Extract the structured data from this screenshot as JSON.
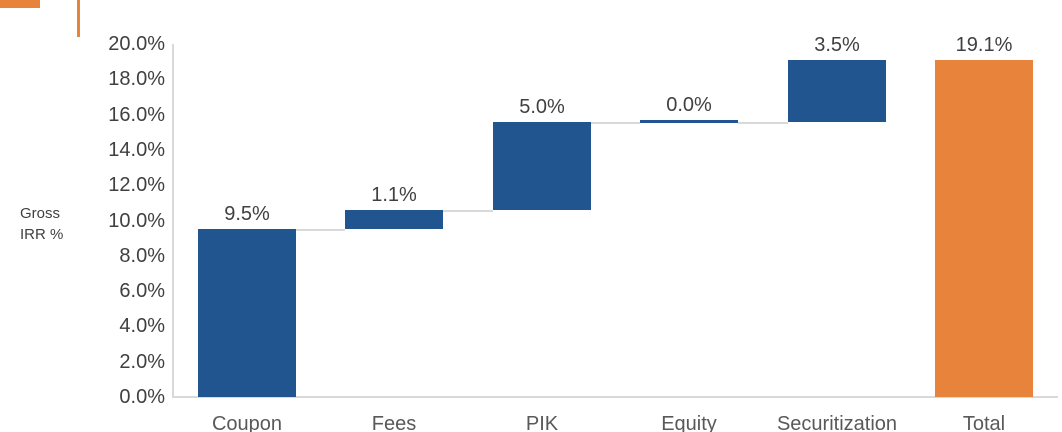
{
  "page": {
    "background": "#ffffff"
  },
  "decoration": {
    "accent_color": "#E8833C"
  },
  "chart_data": {
    "type": "bar",
    "subtype": "waterfall",
    "title": "",
    "xlabel": "",
    "ylabel": "Gross IRR %",
    "ylim": [
      0,
      20
    ],
    "ytick_step": 2,
    "ytick_labels": [
      "20.0%",
      "18.0%",
      "16.0%",
      "14.0%",
      "12.0%",
      "10.0%",
      "8.0%",
      "6.0%",
      "4.0%",
      "2.0%",
      "0.0%"
    ],
    "grid": false,
    "legend": false,
    "categories": [
      "Coupon",
      "Fees",
      "PIK",
      "Equity",
      "Securitization",
      "Total"
    ],
    "bars": [
      {
        "category": "Coupon",
        "start": 0,
        "end": 9.5,
        "label": "9.5%",
        "role": "increment",
        "connector_to_next": true
      },
      {
        "category": "Fees",
        "start": 9.5,
        "end": 10.6,
        "label": "1.1%",
        "role": "increment",
        "connector_to_next": true
      },
      {
        "category": "PIK",
        "start": 10.6,
        "end": 15.6,
        "label": "5.0%",
        "role": "increment",
        "connector_to_next": true
      },
      {
        "category": "Equity",
        "start": 15.6,
        "end": 15.6,
        "label": "0.0%",
        "role": "increment",
        "connector_to_next": true
      },
      {
        "category": "Securitization",
        "start": 15.6,
        "end": 19.1,
        "label": "3.5%",
        "role": "increment",
        "connector_to_next": false
      },
      {
        "category": "Total",
        "start": 0,
        "end": 19.1,
        "label": "19.1%",
        "role": "total",
        "connector_to_next": false
      }
    ],
    "colors": {
      "increment": "#215590",
      "total": "#E8833C",
      "connector": "#D9D9D9",
      "axis": "#D9D9D9",
      "tick_text": "#404040",
      "data_label_text": "#404040",
      "category_text": "#595959",
      "axis_title_text": "#404040"
    }
  }
}
